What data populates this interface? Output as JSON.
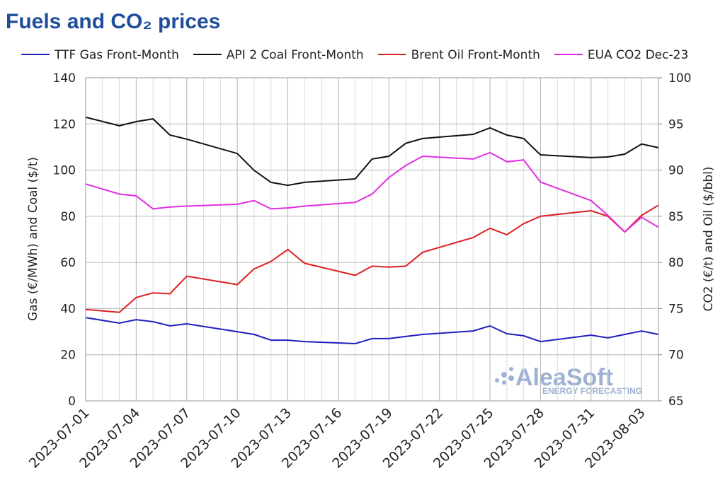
{
  "chart_data": {
    "type": "line",
    "title": "Fuels and CO₂ prices",
    "y_label": "Gas (€/MWh) and Coal ($/t)",
    "y2_label": "CO2 (€/t) and Oil ($/bbl)",
    "watermark": [
      "AleaSoft",
      "ENERGY FORECASTING"
    ],
    "x": [
      "2023-07-01",
      "2023-07-03",
      "2023-07-04",
      "2023-07-05",
      "2023-07-06",
      "2023-07-07",
      "2023-07-10",
      "2023-07-11",
      "2023-07-12",
      "2023-07-13",
      "2023-07-14",
      "2023-07-17",
      "2023-07-18",
      "2023-07-19",
      "2023-07-20",
      "2023-07-21",
      "2023-07-24",
      "2023-07-25",
      "2023-07-26",
      "2023-07-27",
      "2023-07-28",
      "2023-07-31",
      "2023-08-01",
      "2023-08-02",
      "2023-08-03",
      "2023-08-04"
    ],
    "xlim": [
      "2023-07-01",
      "2023-08-04"
    ],
    "xticks": [
      "2023-07-01",
      "2023-07-04",
      "2023-07-07",
      "2023-07-10",
      "2023-07-13",
      "2023-07-16",
      "2023-07-19",
      "2023-07-22",
      "2023-07-25",
      "2023-07-28",
      "2023-07-31",
      "2023-08-03"
    ],
    "ylim": [
      0,
      140
    ],
    "yticks": [
      0,
      20,
      40,
      60,
      80,
      100,
      120,
      140
    ],
    "y2lim": [
      65,
      100
    ],
    "y2ticks": [
      65,
      70,
      75,
      80,
      85,
      90,
      95,
      100
    ],
    "grid": true,
    "legend": "top",
    "series": [
      {
        "name": "TTF Gas Front-Month",
        "color": "#1f1fbf",
        "values": [
          36.1,
          33.7,
          35.2,
          34.3,
          32.5,
          33.4,
          30.0,
          28.8,
          26.3,
          26.3,
          25.7,
          24.8,
          27.0,
          27.0,
          27.9,
          28.8,
          30.3,
          32.5,
          29.1,
          28.2,
          25.7,
          28.5,
          27.3,
          28.8,
          30.3,
          28.8
        ]
      },
      {
        "name": "API 2 Coal Front-Month",
        "color": "#111111",
        "values": [
          122.9,
          119.2,
          121.0,
          122.2,
          115.2,
          113.4,
          107.2,
          99.9,
          94.7,
          93.4,
          94.7,
          96.2,
          104.8,
          106.0,
          111.6,
          113.7,
          115.5,
          118.3,
          115.2,
          113.7,
          106.6,
          105.4,
          105.7,
          106.9,
          111.3,
          109.7
        ]
      },
      {
        "name": "Brent Oil Front-Month",
        "color": "#dd2020",
        "axis": "y2",
        "values": [
          74.9,
          74.6,
          76.2,
          76.7,
          76.6,
          78.5,
          77.6,
          79.3,
          80.1,
          81.4,
          79.9,
          78.6,
          79.6,
          79.5,
          79.6,
          81.1,
          82.7,
          83.7,
          83.0,
          84.2,
          85.0,
          85.6,
          85.0,
          83.3,
          85.1,
          86.2
        ]
      },
      {
        "name": "EUA CO2 Dec-23",
        "color": "#e22ee2",
        "axis": "y2",
        "values": [
          88.5,
          87.4,
          87.2,
          85.8,
          86.0,
          86.1,
          86.3,
          86.7,
          85.8,
          85.9,
          86.1,
          86.5,
          87.4,
          89.2,
          90.5,
          91.5,
          91.2,
          91.9,
          90.9,
          91.1,
          88.7,
          86.7,
          85.1,
          83.3,
          84.9,
          83.8
        ]
      }
    ]
  }
}
